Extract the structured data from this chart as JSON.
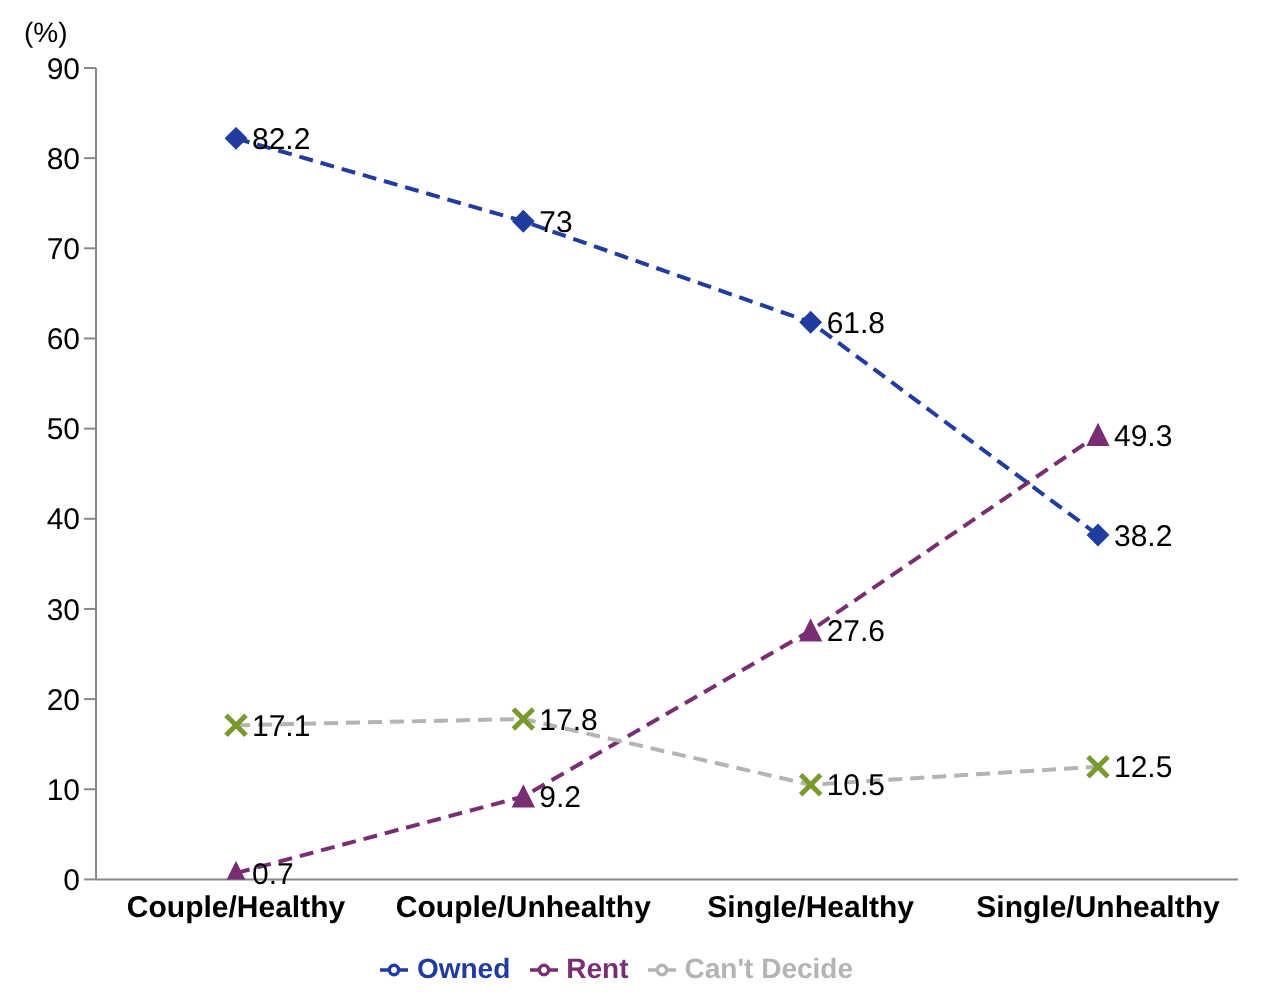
{
  "chart_data": {
    "type": "line",
    "ylabel": "(%)",
    "categories": [
      "Couple/Healthy",
      "Couple/Unhealthy",
      "Single/Healthy",
      "Single/Unhealthy"
    ],
    "series": [
      {
        "name": "Owned",
        "color": "#1f3c9e",
        "values": [
          82.2,
          73,
          61.8,
          38.2
        ],
        "marker": "diamond",
        "line_style": "dashed"
      },
      {
        "name": "Rent",
        "color": "#7a2e72",
        "values": [
          0.7,
          9.2,
          27.6,
          49.3
        ],
        "marker": "triangle",
        "line_style": "dashed"
      },
      {
        "name": "Can't Decide",
        "color": "#b4b4b4",
        "values": [
          17.1,
          17.8,
          10.5,
          12.5
        ],
        "marker": "cross",
        "line_style": "dashed"
      }
    ],
    "ylim": [
      0,
      90
    ],
    "yticks": [
      0,
      10,
      20,
      30,
      40,
      50,
      60,
      70,
      80,
      90
    ],
    "grid": false,
    "legend": "bottom",
    "data_labels": true
  }
}
